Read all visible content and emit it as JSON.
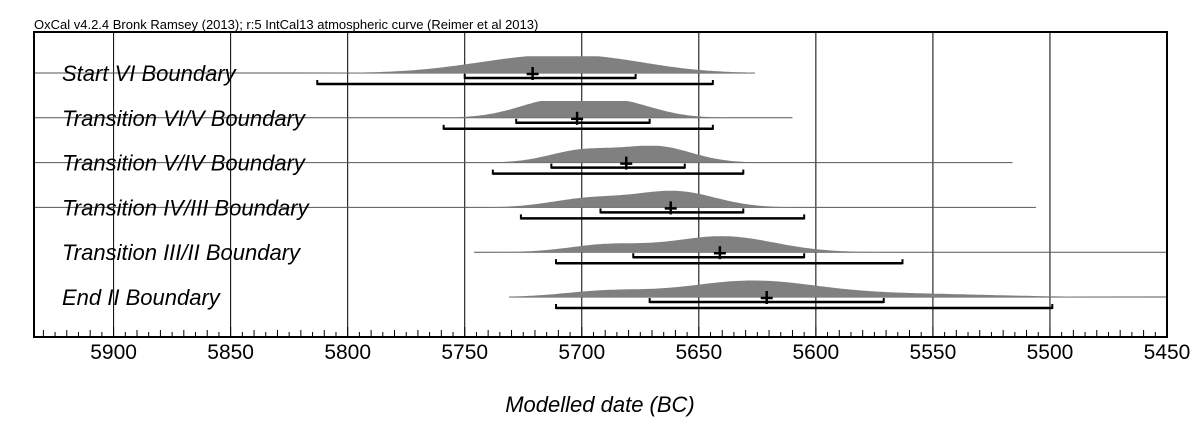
{
  "header": "OxCal v4.2.4 Bronk Ramsey (2013); r:5 IntCal13 atmospheric curve (Reimer et al 2013)",
  "colors": {
    "distribution": "#808080",
    "axis": "#000000"
  },
  "chart_data": {
    "type": "area",
    "xlabel": "Modelled date (BC)",
    "xlim": [
      5934,
      5450
    ],
    "x_ticks": [
      5900,
      5850,
      5800,
      5750,
      5700,
      5650,
      5600,
      5550,
      5500,
      5450
    ],
    "tick_labels": [
      "5900",
      "5850",
      "5800",
      "5750",
      "5700",
      "5650",
      "5600",
      "5550",
      "5500",
      "5450"
    ],
    "series": [
      {
        "name": "Start VI Boundary",
        "line": [
          5935,
          5626
        ],
        "mean": 5721,
        "range68": [
          5750,
          5677
        ],
        "range95": [
          5813,
          5644
        ],
        "peaks": [
          [
            5723,
            0.8,
            28
          ],
          [
            5690,
            0.6,
            25
          ]
        ]
      },
      {
        "name": "Transition VI/V Boundary",
        "line": [
          5935,
          5610
        ],
        "mean": 5702,
        "range68": [
          5728,
          5671
        ],
        "range95": [
          5759,
          5644
        ],
        "peaks": [
          [
            5712,
            1.0,
            16
          ],
          [
            5685,
            0.95,
            16
          ]
        ]
      },
      {
        "name": "Transition V/IV Boundary",
        "line": [
          5935,
          5516
        ],
        "mean": 5681,
        "range68": [
          5713,
          5656
        ],
        "range95": [
          5738,
          5631
        ],
        "peaks": [
          [
            5700,
            0.75,
            14
          ],
          [
            5668,
            1.0,
            15
          ]
        ]
      },
      {
        "name": "Transition IV/III Boundary",
        "line": [
          5935,
          5506
        ],
        "mean": 5662,
        "range68": [
          5692,
          5631
        ],
        "range95": [
          5726,
          5605
        ],
        "peaks": [
          [
            5697,
            0.55,
            16
          ],
          [
            5660,
            1.0,
            17
          ]
        ]
      },
      {
        "name": "Transition III/II Boundary",
        "line": [
          5746,
          5450
        ],
        "mean": 5641,
        "range68": [
          5678,
          5605
        ],
        "range95": [
          5711,
          5563
        ],
        "peaks": [
          [
            5690,
            0.45,
            16
          ],
          [
            5640,
            1.0,
            22
          ]
        ]
      },
      {
        "name": "End II Boundary",
        "line": [
          5731,
          5450
        ],
        "mean": 5621,
        "range68": [
          5671,
          5571
        ],
        "range95": [
          5711,
          5499
        ],
        "peaks": [
          [
            5690,
            0.35,
            18
          ],
          [
            5628,
            1.0,
            28
          ],
          [
            5560,
            0.2,
            35
          ]
        ]
      }
    ]
  }
}
